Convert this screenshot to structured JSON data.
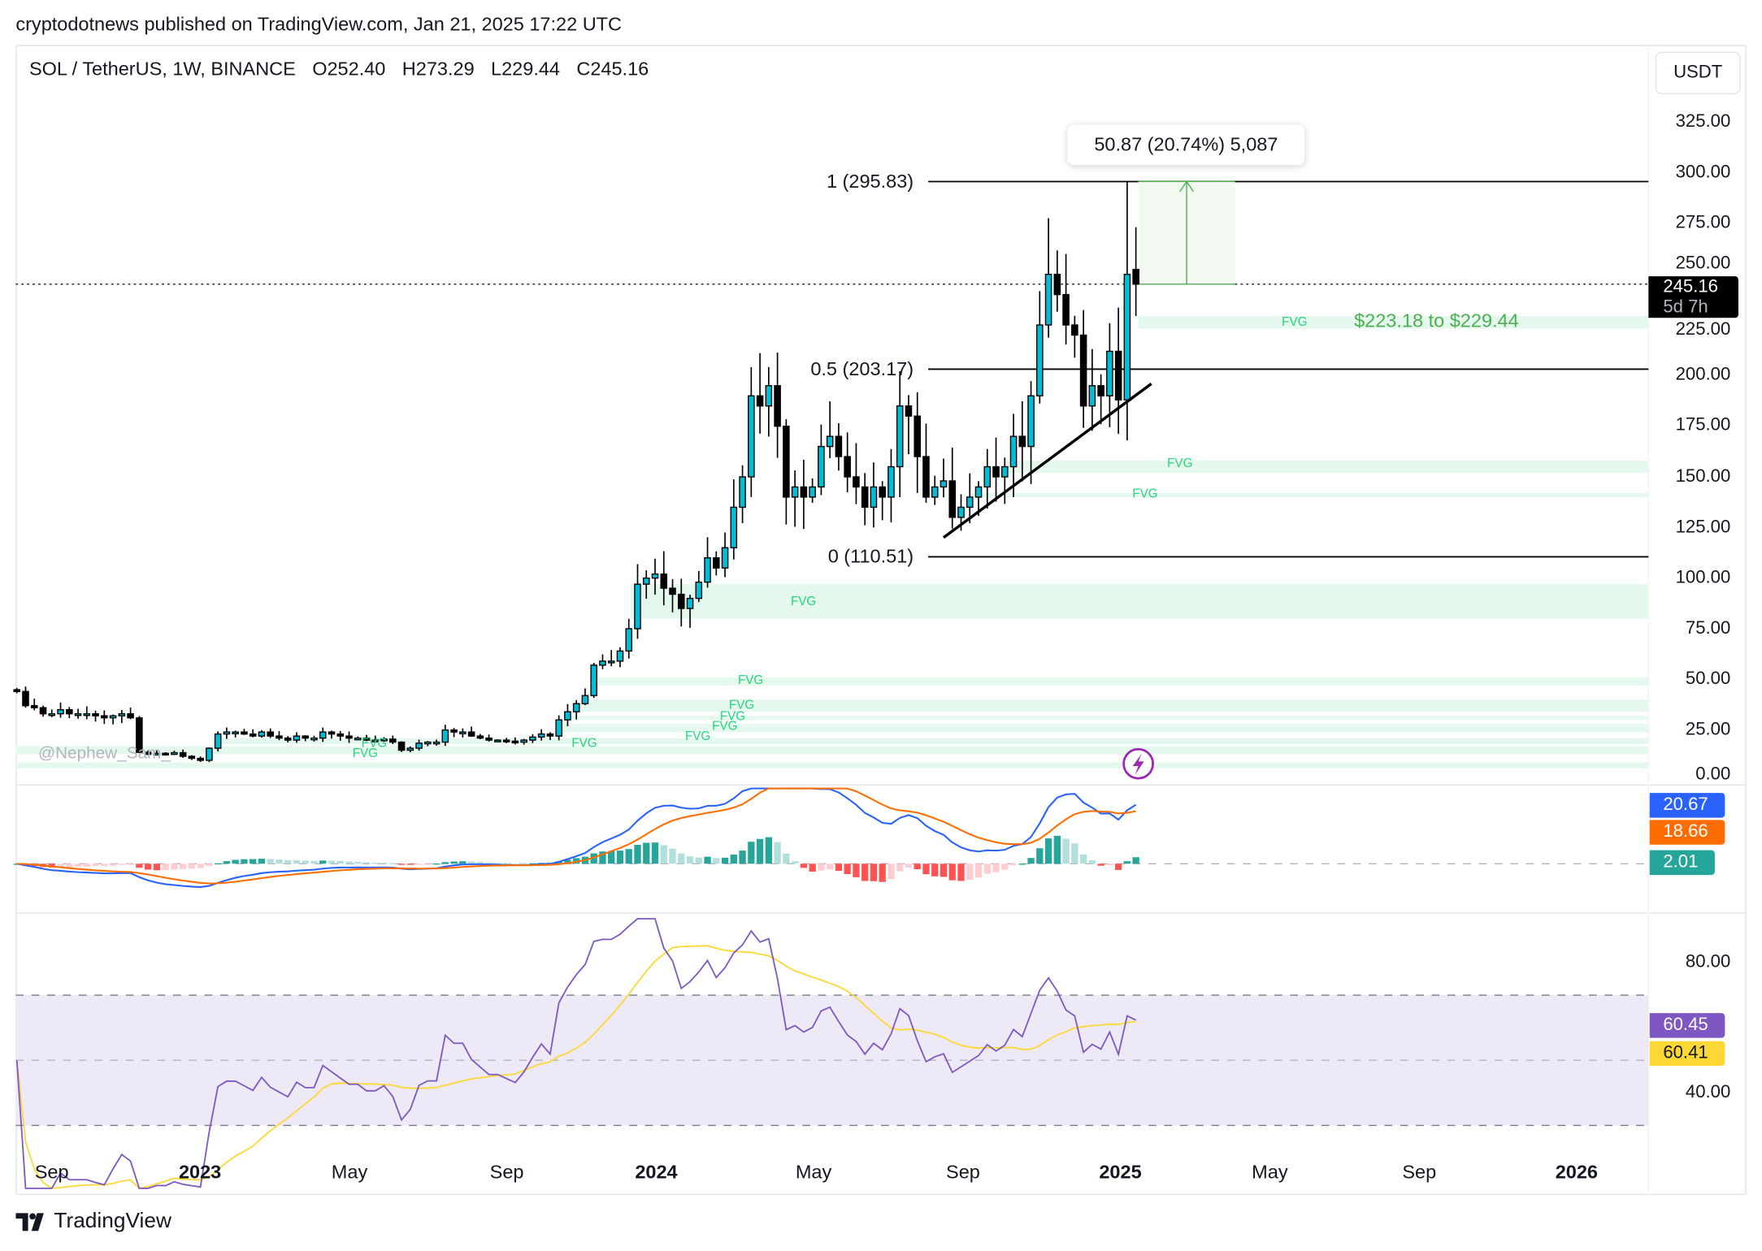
{
  "publisher_line": "cryptodotnews published on TradingView.com, Jan 21, 2025 17:22 UTC",
  "legend": {
    "symbol": "SOL / TetherUS, 1W, BINANCE",
    "open": "O252.40",
    "high": "H273.29",
    "low": "L229.44",
    "close": "C245.16"
  },
  "currency_button": "USDT",
  "last_price": {
    "value": "245.16",
    "countdown": "5d 7h"
  },
  "measure_tooltip": "50.87 (20.74%) 5,087",
  "fib_levels": [
    {
      "label": "1 (295.83)",
      "price": 295.83
    },
    {
      "label": "0.5 (203.17)",
      "price": 203.17
    },
    {
      "label": "0 (110.51)",
      "price": 110.51
    }
  ],
  "fvg_label": "FVG",
  "fvg_highlight_text": "$223.18 to $229.44",
  "watermark": "@Nephew_Sam_",
  "price_axis": [
    "325.00",
    "300.00",
    "275.00",
    "250.00",
    "225.00",
    "200.00",
    "175.00",
    "150.00",
    "125.00",
    "100.00",
    "75.00",
    "50.00",
    "25.00",
    "0.00"
  ],
  "time_axis": [
    {
      "label": "Sep",
      "bold": false
    },
    {
      "label": "2023",
      "bold": true
    },
    {
      "label": "May",
      "bold": false
    },
    {
      "label": "Sep",
      "bold": false
    },
    {
      "label": "2024",
      "bold": true
    },
    {
      "label": "May",
      "bold": false
    },
    {
      "label": "Sep",
      "bold": false
    },
    {
      "label": "2025",
      "bold": true
    },
    {
      "label": "May",
      "bold": false
    },
    {
      "label": "Sep",
      "bold": false
    },
    {
      "label": "2026",
      "bold": true
    }
  ],
  "macd": {
    "macd_value": "20.67",
    "signal_value": "18.66",
    "hist_value": "2.01",
    "colors": {
      "macd": "#2962ff",
      "signal": "#ff6d00",
      "hist": "#26a69a"
    }
  },
  "rsi": {
    "rsi_value": "60.45",
    "ma_value": "60.41",
    "axis": [
      "80.00",
      "40.00"
    ],
    "colors": {
      "rsi": "#7e57c2",
      "ma": "#fdd835"
    }
  },
  "brand": "TradingView",
  "chart_data": {
    "type": "candlestick",
    "interval": "1W",
    "start_week": "2022-08-08",
    "ylim": [
      0,
      335
    ],
    "closes": [
      44,
      37,
      36,
      33,
      33,
      35,
      33,
      33,
      33,
      32,
      31,
      32,
      33,
      31,
      14,
      13,
      13.5,
      13.4,
      13.8,
      12,
      11,
      10,
      16,
      23,
      24,
      24,
      23,
      22,
      24,
      22,
      21,
      20,
      22,
      21,
      21,
      24,
      23,
      22,
      21,
      21,
      20,
      20,
      20.5,
      19,
      15,
      16,
      18.5,
      19,
      19,
      25,
      24,
      24,
      22,
      21,
      20,
      20,
      19.5,
      19,
      20,
      21.5,
      23,
      22,
      30,
      34,
      38,
      42,
      57,
      59,
      59,
      64,
      75,
      97,
      100,
      102,
      95,
      92,
      85,
      90,
      98,
      110,
      105,
      115,
      135,
      150,
      190,
      185,
      195,
      175,
      140,
      145,
      140,
      145,
      165,
      170,
      160,
      150,
      145,
      135,
      145,
      140,
      155,
      185,
      180,
      160,
      140,
      145,
      148,
      130,
      135,
      140,
      145,
      155,
      150,
      155,
      170,
      165,
      190,
      225,
      250,
      240,
      225,
      220,
      185,
      195,
      190,
      212,
      188,
      250,
      245.16
    ],
    "last_candle": {
      "open": 252.4,
      "high": 273.29,
      "low": 229.44,
      "close": 245.16
    },
    "prev_candle_high": 295.83,
    "fvg_zones": [
      [
        223.18,
        229.44
      ],
      [
        152,
        158
      ],
      [
        140,
        142
      ],
      [
        80,
        97
      ],
      [
        47,
        51
      ],
      [
        34,
        40
      ],
      [
        30,
        32
      ],
      [
        24,
        28
      ],
      [
        18,
        21
      ],
      [
        13,
        17
      ],
      [
        6,
        9
      ]
    ],
    "trendline": [
      {
        "week": 106,
        "price": 120
      },
      {
        "week": 129,
        "price": 196
      }
    ],
    "measure": {
      "from": 245.16,
      "to": 295.83,
      "change": 50.87,
      "percent": 20.74
    }
  }
}
